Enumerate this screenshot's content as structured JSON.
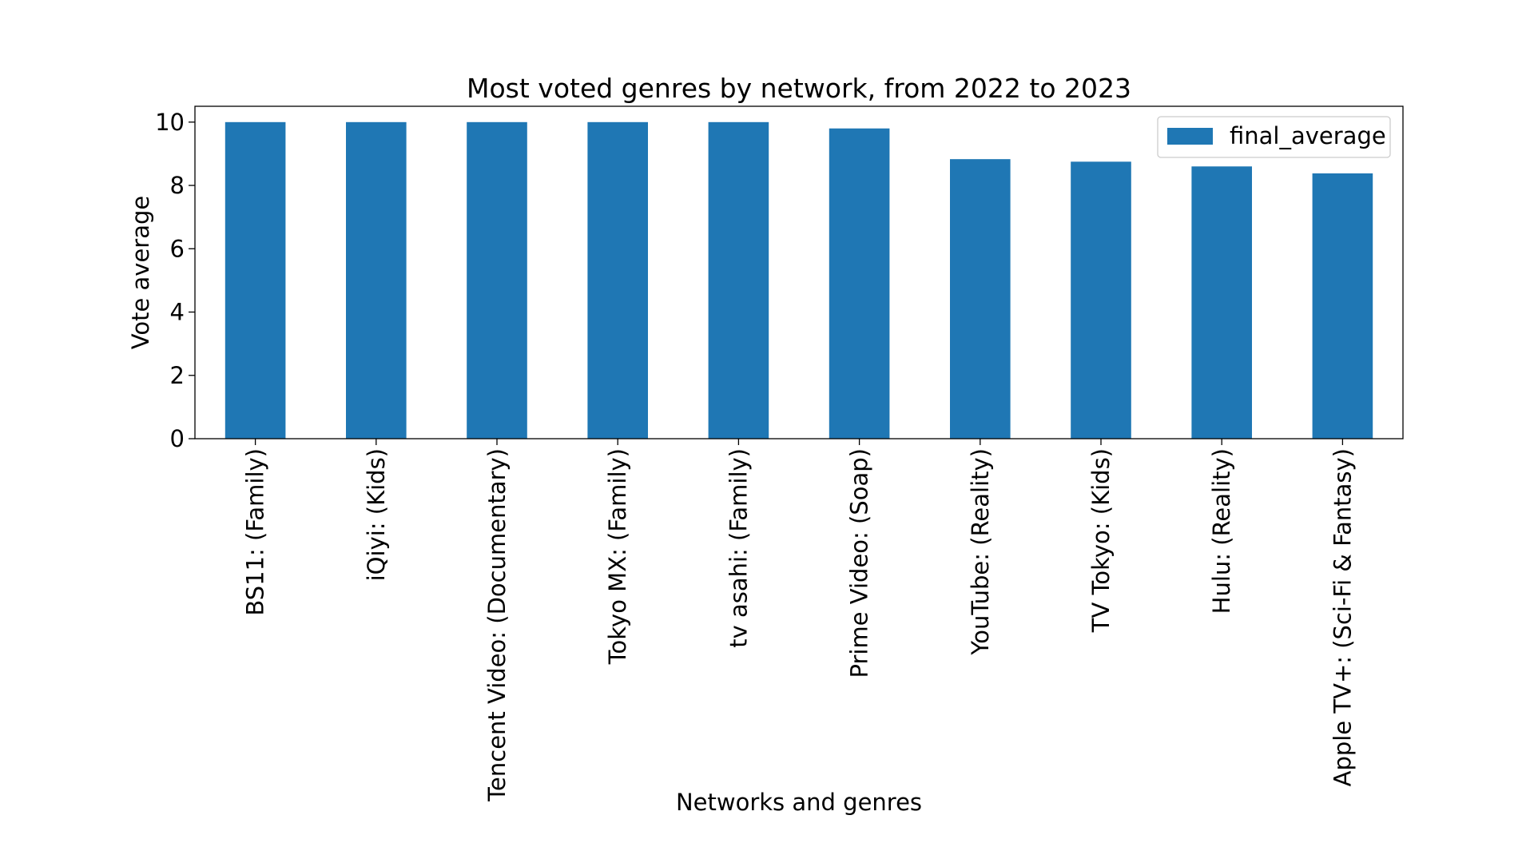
{
  "chart_data": {
    "type": "bar",
    "title": "Most voted genres by network, from 2022 to 2023",
    "xlabel": "Networks and genres",
    "ylabel": "Vote average",
    "ylim": [
      0,
      10.5
    ],
    "yticks": [
      0,
      2,
      4,
      6,
      8,
      10
    ],
    "categories": [
      "BS11: (Family)",
      "iQiyi: (Kids)",
      "Tencent Video: (Documentary)",
      "Tokyo MX: (Family)",
      "tv asahi: (Family)",
      "Prime Video: (Soap)",
      "YouTube: (Reality)",
      "TV Tokyo: (Kids)",
      "Hulu: (Reality)",
      "Apple TV+: (Sci-Fi & Fantasy)"
    ],
    "series": [
      {
        "name": "final_average",
        "color": "#1f77b4",
        "values": [
          10.0,
          10.0,
          10.0,
          10.0,
          10.0,
          9.8,
          8.83,
          8.75,
          8.6,
          8.38
        ]
      }
    ],
    "legend_position": "top-right",
    "grid": false
  }
}
